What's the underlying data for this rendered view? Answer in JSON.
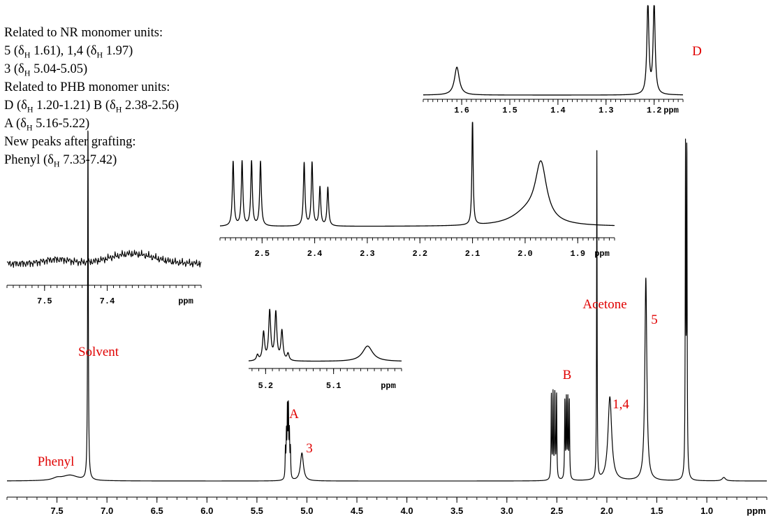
{
  "notes": {
    "nr_header": "Related to NR monomer units:",
    "nr_a1_pre": "5 (δ",
    "nr_a1_post": " 1.61), 1,4 (δ",
    "nr_a1_end": " 1.97)",
    "nr_b_pre": "3 (δ",
    "nr_b_post": " 5.04-5.05)",
    "phb_header": "Related to PHB monomer units:",
    "phb_a_pre": "D (δ",
    "phb_a_mid": " 1.20-1.21)    B (δ",
    "phb_a_end": " 2.38-2.56)",
    "phb_b_pre": "A (δ",
    "phb_b_post": " 5.16-5.22)",
    "new_header": "New peaks after grafting:",
    "new_a_pre": "Phenyl (δ",
    "new_a_post": " 7.33-7.42)",
    "sub": "H"
  },
  "colors": {
    "label": "#e00000",
    "trace": "#000000"
  },
  "chart_data": [
    {
      "type": "line",
      "role": "main",
      "xlabel": "ppm",
      "xlim": [
        8.0,
        0.4
      ],
      "x_reversed": true,
      "xticks": [
        "7.5",
        "7.0",
        "6.5",
        "6.0",
        "5.5",
        "5.0",
        "4.5",
        "4.0",
        "3.5",
        "3.0",
        "2.5",
        "2.0",
        "1.5",
        "1.0"
      ],
      "peaks": [
        {
          "label": "Phenyl",
          "x": 7.37,
          "height": 0.02
        },
        {
          "label": "Solvent",
          "x": 7.19,
          "height": 0.44
        },
        {
          "label": "A",
          "x": 5.19,
          "height": 0.2
        },
        {
          "label": "3",
          "x": 5.05,
          "height": 0.06
        },
        {
          "label": "B",
          "x": 2.53,
          "height": 0.23
        },
        {
          "label": "Acetone",
          "x": 2.1,
          "height": 0.56
        },
        {
          "label": "1,4",
          "x": 1.97,
          "height": 0.17
        },
        {
          "label": "5",
          "x": 1.61,
          "height": 0.38
        },
        {
          "label": "D",
          "x": 1.2,
          "height": 1.0
        }
      ],
      "grid": false
    },
    {
      "type": "line",
      "role": "inset",
      "xlabel": "ppm",
      "xlim": [
        1.68,
        1.14
      ],
      "xticks": [
        "1.6",
        "1.5",
        "1.4",
        "1.3",
        "1.2"
      ]
    },
    {
      "type": "line",
      "role": "inset",
      "xlabel": "ppm",
      "xlim": [
        2.58,
        1.83
      ],
      "xticks": [
        "2.5",
        "2.4",
        "2.3",
        "2.2",
        "2.1",
        "2.0",
        "1.9"
      ]
    },
    {
      "type": "line",
      "role": "inset",
      "xlabel": "ppm",
      "xlim": [
        7.56,
        7.25
      ],
      "xticks": [
        "7.5",
        "7.4"
      ]
    },
    {
      "type": "line",
      "role": "inset",
      "xlabel": "ppm",
      "xlim": [
        5.225,
        5.0
      ],
      "xticks": [
        "5.2",
        "5.1"
      ]
    }
  ]
}
